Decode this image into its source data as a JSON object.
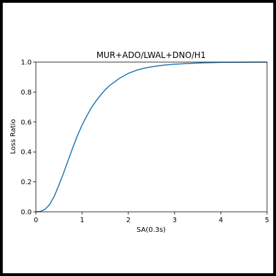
{
  "chart_data": {
    "type": "line",
    "title": "MUR+ADO/LWAL+DNO/H1",
    "xlabel": "SA(0.3s)",
    "ylabel": "Loss Ratio",
    "xlim": [
      0,
      5
    ],
    "ylim": [
      0,
      1
    ],
    "xticks": [
      "0",
      "1",
      "2",
      "3",
      "4",
      "5"
    ],
    "yticks": [
      "0.0",
      "0.2",
      "0.4",
      "0.6",
      "0.8",
      "1.0"
    ],
    "grid": false,
    "series": [
      {
        "color": "#1f77b4",
        "x": [
          0,
          0.1,
          0.2,
          0.3,
          0.4,
          0.5,
          0.6,
          0.7,
          0.8,
          0.9,
          1.0,
          1.1,
          1.2,
          1.3,
          1.4,
          1.5,
          1.6,
          1.8,
          2.0,
          2.2,
          2.4,
          2.6,
          2.8,
          3.0,
          3.3,
          3.6,
          4.0,
          4.4,
          5.0
        ],
        "y": [
          0.0,
          0.003,
          0.017,
          0.05,
          0.105,
          0.18,
          0.26,
          0.345,
          0.43,
          0.51,
          0.58,
          0.64,
          0.695,
          0.74,
          0.78,
          0.815,
          0.845,
          0.89,
          0.925,
          0.948,
          0.963,
          0.973,
          0.981,
          0.986,
          0.991,
          0.995,
          0.998,
          0.999,
          1.0
        ]
      }
    ]
  }
}
